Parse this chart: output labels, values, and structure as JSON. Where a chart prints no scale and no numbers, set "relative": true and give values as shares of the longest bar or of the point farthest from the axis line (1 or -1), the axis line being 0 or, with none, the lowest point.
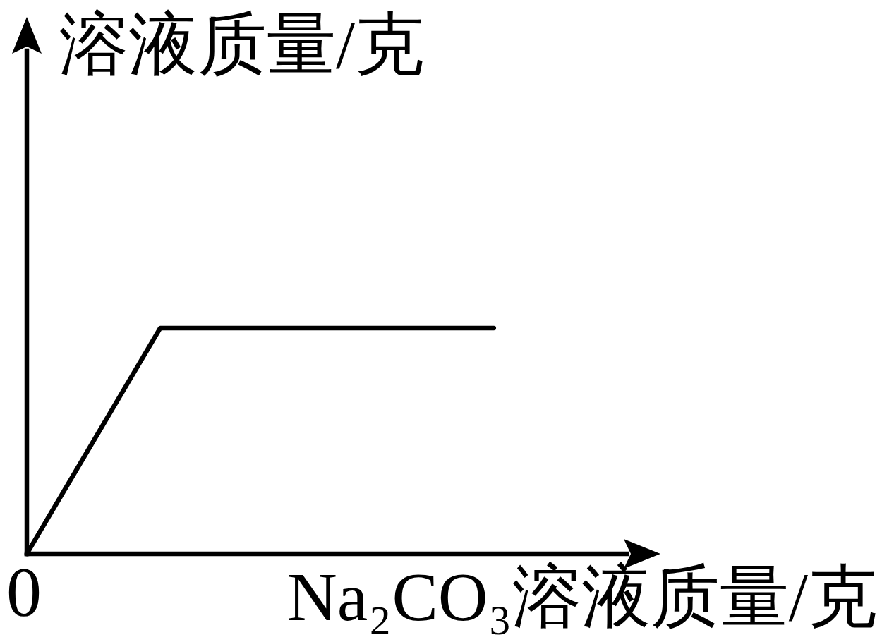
{
  "chart_data": {
    "type": "line",
    "relative": true,
    "categories": [
      null,
      null,
      null,
      null,
      null,
      null,
      null,
      null
    ],
    "values": [
      0,
      0.5,
      1,
      1,
      1,
      1,
      1,
      1
    ],
    "color": "#000000",
    "xlabel": "Na₂CO₃溶液质量/克",
    "ylabel": "溶液质量/克",
    "annotations": [
      "0"
    ]
  }
}
